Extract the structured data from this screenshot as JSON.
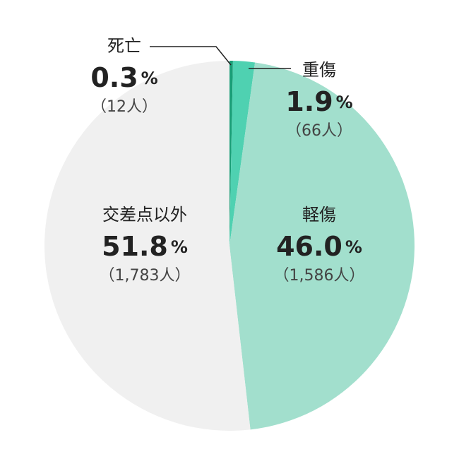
{
  "chart_data": {
    "type": "pie",
    "categories": [
      "死亡",
      "重傷",
      "軽傷",
      "交差点以外"
    ],
    "values": [
      0.3,
      1.9,
      46.0,
      51.8
    ],
    "value_labels": [
      "0.3",
      "1.9",
      "46.0",
      "51.8"
    ],
    "unit": "%",
    "count_labels": [
      "（12人）",
      "（66人）",
      "（1,586人）",
      "（1,783人）"
    ],
    "colors": [
      "#1a9e77",
      "#4fd1b1",
      "#a2dfcd",
      "#f0f0f0"
    ]
  }
}
